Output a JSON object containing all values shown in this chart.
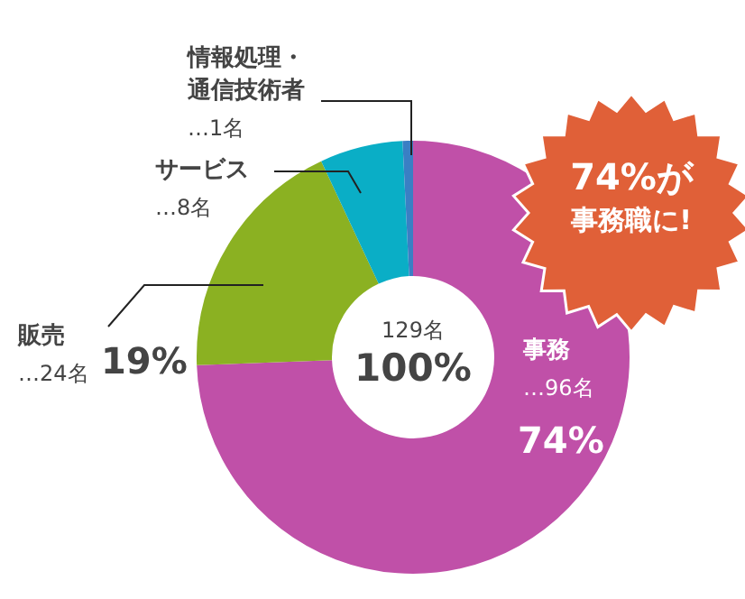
{
  "chart_data": {
    "type": "donut",
    "categories": [
      "事務",
      "販売",
      "サービス",
      "情報処理・通信技術者"
    ],
    "values": [
      96,
      24,
      8,
      1
    ],
    "colors": [
      "#c050a8",
      "#8bb122",
      "#0aaec6",
      "#3a7fc4"
    ],
    "value_labels": [
      "…96名",
      "…24名",
      "…8名",
      "…1名"
    ],
    "annotations": [
      {
        "text": "74%",
        "x": "事務"
      },
      {
        "text": "19%",
        "x": "販売"
      },
      "129名",
      "100%",
      "74%が",
      "事務職に!"
    ],
    "legend": false
  }
}
